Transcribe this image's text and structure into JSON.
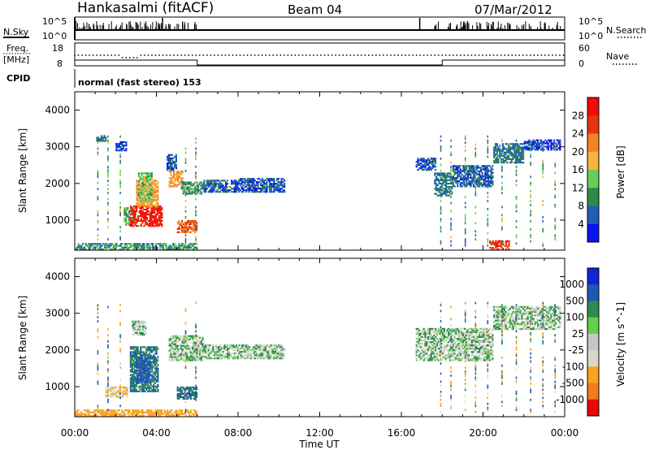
{
  "header": {
    "station": "Hankasalmi (fitACF)",
    "beam": "Beam 04",
    "date": "07/Mar/2012"
  },
  "status_panel": {
    "nsky_label": "N.Sky",
    "nsky_ticks": [
      "10^5",
      "10^0"
    ],
    "nsearch_label": "N.Search",
    "nsearch_ticks": [
      "10^5",
      "10^0"
    ],
    "freq_label": "Freq.",
    "freq_unit": "[MHz]",
    "freq_ticks": [
      "18",
      "8"
    ],
    "nave_label": "Nave",
    "nave_ticks": [
      "60",
      "0"
    ],
    "cpid_label": "CPID",
    "cpid_text": "normal (fast stereo) 153"
  },
  "colors": {
    "power": [
      "#0a14f0",
      "#1f5fb3",
      "#2f8a4a",
      "#6acd5a",
      "#f6b53c",
      "#f48228",
      "#e8330f",
      "#f40a0a"
    ],
    "velocity": [
      "#e80a0a",
      "#f47a1a",
      "#f8a21e",
      "#d8d8c8",
      "#c6c6c6",
      "#62d04a",
      "#2e8a50",
      "#1e58b0",
      "#1424d4"
    ]
  },
  "chart_data": [
    {
      "type": "heatmap",
      "title": "Power",
      "ylabel": "Slant Range [km]",
      "xlabel": "",
      "xlim": [
        "00:00",
        "24:00"
      ],
      "ylim": [
        180,
        4500
      ],
      "x_ticks": [
        "00:00",
        "04:00",
        "08:00",
        "12:00",
        "16:00",
        "20:00",
        "00:00"
      ],
      "y_ticks": [
        "1000",
        "2000",
        "3000",
        "4000"
      ],
      "colorbar": {
        "label": "Power [dB]",
        "ticks": [
          "28",
          "24",
          "20",
          "16",
          "12",
          "8",
          "4"
        ],
        "range": [
          0,
          32
        ]
      },
      "regions": [
        {
          "t0": 1.05,
          "t1": 1.55,
          "r0": 3140,
          "r1": 3320,
          "value": 8
        },
        {
          "t0": 2.0,
          "t1": 2.55,
          "r0": 2880,
          "r1": 3150,
          "value": 4
        },
        {
          "t0": 2.4,
          "t1": 3.0,
          "r0": 850,
          "r1": 1350,
          "value": 12
        },
        {
          "t0": 2.7,
          "t1": 4.3,
          "r0": 820,
          "r1": 1400,
          "value": 28
        },
        {
          "t0": 3.0,
          "t1": 4.1,
          "r0": 1350,
          "r1": 2100,
          "value": 20
        },
        {
          "t0": 3.1,
          "t1": 3.8,
          "r0": 1500,
          "r1": 2300,
          "value": 14
        },
        {
          "t0": 4.6,
          "t1": 5.3,
          "r0": 1900,
          "r1": 2350,
          "value": 20
        },
        {
          "t0": 4.5,
          "t1": 5.0,
          "r0": 2350,
          "r1": 2800,
          "value": 6
        },
        {
          "t0": 5.2,
          "t1": 6.3,
          "r0": 1700,
          "r1": 2050,
          "value": 10
        },
        {
          "t0": 5.0,
          "t1": 6.0,
          "r0": 650,
          "r1": 1000,
          "value": 24
        },
        {
          "t0": 6.3,
          "t1": 8.0,
          "r0": 1750,
          "r1": 2100,
          "value": 6
        },
        {
          "t0": 8.0,
          "t1": 10.3,
          "r0": 1750,
          "r1": 2150,
          "value": 6
        },
        {
          "t0": 16.7,
          "t1": 17.7,
          "r0": 2350,
          "r1": 2700,
          "value": 6
        },
        {
          "t0": 17.6,
          "t1": 18.5,
          "r0": 1650,
          "r1": 2300,
          "value": 8
        },
        {
          "t0": 18.5,
          "t1": 20.5,
          "r0": 1900,
          "r1": 2500,
          "value": 6
        },
        {
          "t0": 20.5,
          "t1": 22.0,
          "r0": 2550,
          "r1": 3100,
          "value": 8
        },
        {
          "t0": 22.0,
          "t1": 23.8,
          "r0": 2900,
          "r1": 3200,
          "value": 4
        },
        {
          "t0": 0.0,
          "t1": 6.0,
          "r0": 180,
          "r1": 380,
          "value": 10
        },
        {
          "t0": 20.3,
          "t1": 21.3,
          "r0": 180,
          "r1": 450,
          "value": 26
        }
      ]
    },
    {
      "type": "heatmap",
      "title": "Velocity",
      "ylabel": "Slant Range [km]",
      "xlabel": "Time UT",
      "xlim": [
        "00:00",
        "24:00"
      ],
      "ylim": [
        180,
        4500
      ],
      "x_ticks": [
        "00:00",
        "04:00",
        "08:00",
        "12:00",
        "16:00",
        "20:00",
        "00:00"
      ],
      "y_ticks": [
        "1000",
        "2000",
        "3000",
        "4000"
      ],
      "colorbar": {
        "label": "Velocity [m s^-1]",
        "ticks": [
          "1000",
          "500",
          "100",
          "25",
          "-25",
          "-100",
          "-500",
          "-1000"
        ]
      },
      "regions": [
        {
          "t0": 2.7,
          "t1": 4.1,
          "r0": 850,
          "r1": 2100,
          "value": 100
        },
        {
          "t0": 3.0,
          "t1": 3.7,
          "r0": 1100,
          "r1": 1800,
          "value": 300
        },
        {
          "t0": 1.5,
          "t1": 2.6,
          "r0": 700,
          "r1": 1000,
          "value": -100
        },
        {
          "t0": 2.8,
          "t1": 3.5,
          "r0": 2400,
          "r1": 2800,
          "value": 0
        },
        {
          "t0": 4.6,
          "t1": 6.3,
          "r0": 1700,
          "r1": 2400,
          "value": 0
        },
        {
          "t0": 5.0,
          "t1": 6.0,
          "r0": 650,
          "r1": 1000,
          "value": 100
        },
        {
          "t0": 6.3,
          "t1": 10.3,
          "r0": 1750,
          "r1": 2150,
          "value": 0
        },
        {
          "t0": 16.7,
          "t1": 20.5,
          "r0": 1700,
          "r1": 2600,
          "value": 0
        },
        {
          "t0": 20.5,
          "t1": 23.8,
          "r0": 2550,
          "r1": 3200,
          "value": 0
        },
        {
          "t0": 0.0,
          "t1": 6.0,
          "r0": 180,
          "r1": 380,
          "value": -300
        }
      ]
    }
  ]
}
